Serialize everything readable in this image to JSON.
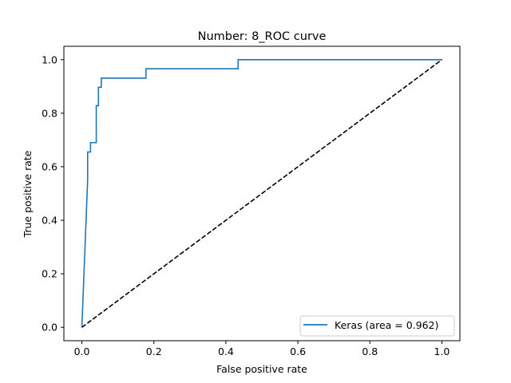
{
  "chart_data": {
    "type": "line",
    "title": "Number:  8_ROC curve",
    "xlabel": "False positive rate",
    "ylabel": "True positive rate",
    "xlim": [
      -0.05,
      1.05
    ],
    "ylim": [
      -0.05,
      1.05
    ],
    "x_ticks": [
      0.0,
      0.2,
      0.4,
      0.6,
      0.8,
      1.0
    ],
    "y_ticks": [
      0.0,
      0.2,
      0.4,
      0.6,
      0.8,
      1.0
    ],
    "x_tick_labels": [
      "0.0",
      "0.2",
      "0.4",
      "0.6",
      "0.8",
      "1.0"
    ],
    "y_tick_labels": [
      "0.0",
      "0.2",
      "0.4",
      "0.6",
      "0.8",
      "1.0"
    ],
    "grid": false,
    "legend_position": "lower-right",
    "series": [
      {
        "name": "Keras (area = 0.962)",
        "color": "#1f77b4",
        "style": "solid",
        "x": [
          0.0,
          0.016,
          0.016,
          0.024,
          0.024,
          0.04,
          0.04,
          0.046,
          0.046,
          0.054,
          0.054,
          0.178,
          0.178,
          0.434,
          0.434,
          1.0
        ],
        "y": [
          0.0,
          0.55,
          0.655,
          0.655,
          0.69,
          0.69,
          0.828,
          0.828,
          0.897,
          0.897,
          0.931,
          0.931,
          0.966,
          0.966,
          1.0,
          1.0
        ]
      },
      {
        "name": "",
        "color": "#000000",
        "style": "dashed",
        "x": [
          0.0,
          1.0
        ],
        "y": [
          0.0,
          1.0
        ]
      }
    ]
  }
}
